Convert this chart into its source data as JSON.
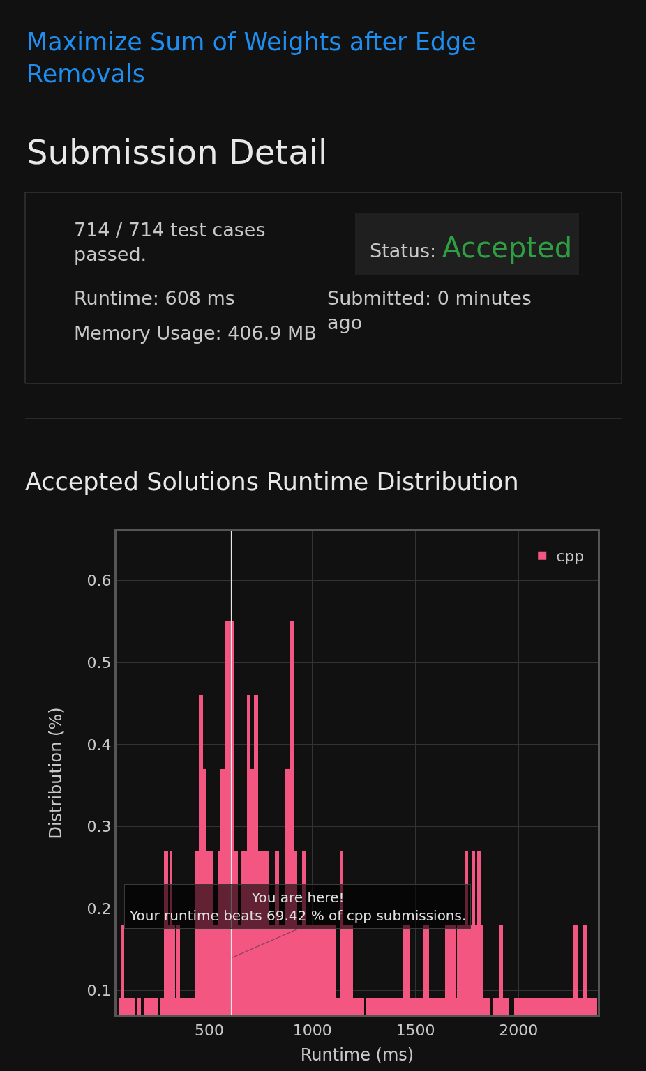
{
  "chart_data": {
    "type": "histogram",
    "title": "Accepted Solutions Runtime Distribution",
    "xlabel": "Runtime (ms)",
    "ylabel": "Distribution (%)",
    "bins": [
      60,
      72,
      88,
      138,
      149,
      168,
      186,
      249,
      260,
      280,
      299,
      306,
      322,
      334,
      342,
      357,
      429,
      449,
      469,
      488,
      519,
      539,
      554,
      576,
      623,
      639,
      654,
      683,
      700,
      716,
      737,
      788,
      817,
      839,
      869,
      894,
      912,
      925,
      951,
      969,
      1112,
      1132,
      1151,
      1197,
      1251,
      1263,
      1440,
      1474,
      1540,
      1566,
      1645,
      1694,
      1702,
      1737,
      1755,
      1771,
      1791,
      1798,
      1817,
      1829,
      1860,
      1875,
      1906,
      1925,
      1955,
      1980,
      2268,
      2291,
      2314,
      2334,
      2380
    ],
    "series": [
      {
        "name": "cpp",
        "color": "#f45682",
        "values": [
          0.09,
          0.18,
          0.09,
          null,
          0.09,
          null,
          0.09,
          null,
          0.09,
          0.27,
          0.18,
          0.27,
          0.18,
          0.09,
          0.18,
          0.09,
          0.27,
          0.46,
          0.37,
          0.27,
          0.18,
          0.27,
          0.37,
          0.55,
          0.27,
          0.18,
          0.27,
          0.46,
          0.37,
          0.46,
          0.27,
          0.18,
          0.27,
          0.18,
          0.37,
          0.55,
          0.27,
          0.18,
          0.27,
          0.18,
          0.09,
          0.27,
          0.18,
          0.09,
          null,
          0.09,
          0.18,
          0.09,
          0.18,
          0.09,
          0.18,
          0.09,
          0.18,
          0.27,
          0.18,
          0.27,
          0.18,
          0.27,
          0.18,
          0.09,
          null,
          0.09,
          0.18,
          0.09,
          null,
          0.09,
          0.18,
          0.09,
          0.18,
          0.09
        ]
      }
    ],
    "xlim": [
      50,
      2385
    ],
    "ylim": [
      0.07,
      0.66
    ],
    "xticks": [
      500,
      1000,
      1500,
      2000
    ],
    "yticks": [
      0.1,
      0.2,
      0.3,
      0.4,
      0.5,
      0.6
    ],
    "grid": true,
    "legend": "top right",
    "ref_lines": [
      {
        "axis": "x",
        "value": 608,
        "color": "#e8e8e8"
      }
    ],
    "annotations": [
      "Maximize Sum of Weights after Edge Removals",
      "Submission Detail",
      "714 / 714 test cases passed.",
      "Status: Accepted",
      "Runtime: 608 ms",
      "Submitted: 0 minutes ago",
      "Memory Usage: 406.9 MB",
      {
        "text": "You are here!\nYour runtime beats 69.42 % of cpp submissions.",
        "x": 608,
        "y": 0.14
      }
    ]
  }
}
